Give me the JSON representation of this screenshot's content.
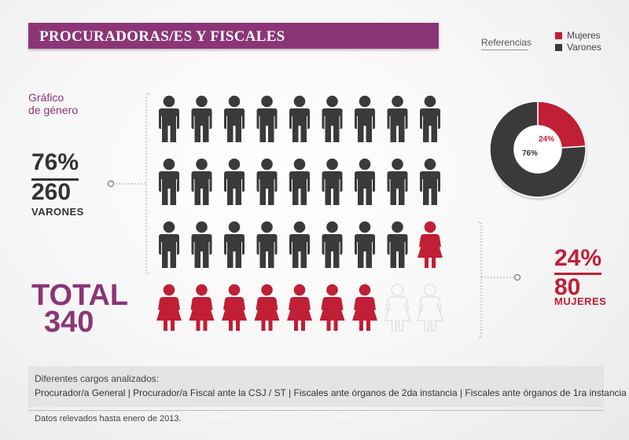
{
  "header": {
    "title": "PROCURADORAS/ES Y FISCALES"
  },
  "legend": {
    "title": "Referencias",
    "items": [
      {
        "label": "Mujeres",
        "color": "#c01f35"
      },
      {
        "label": "Varones",
        "color": "#3a3a3a"
      }
    ]
  },
  "chart_label": {
    "line1": "Gráfico",
    "line2": "de género"
  },
  "male": {
    "percent": "76%",
    "count": "260",
    "label": "VARONES",
    "color": "#3a3a3a"
  },
  "female": {
    "percent": "24%",
    "count": "80",
    "label": "MUJERES",
    "color": "#c01f35"
  },
  "total": {
    "label": "TOTAL",
    "value": "340"
  },
  "chart_data": [
    {
      "type": "pictogram",
      "rows": 4,
      "columns": 9,
      "icons": {
        "male": 26,
        "female": 8,
        "empty": 2
      },
      "values": {
        "Varones": 260,
        "Mujeres": 80
      },
      "total": 340
    },
    {
      "type": "pie",
      "donut": true,
      "categories": [
        "Mujeres",
        "Varones"
      ],
      "values": [
        24,
        76
      ],
      "labels": [
        "24%",
        "76%"
      ],
      "colors": [
        "#c01f35",
        "#3a3a3a"
      ]
    }
  ],
  "footer": {
    "heading": "Diferentes cargos analizados:",
    "text": "Procurador/a General | Procurador/a Fiscal ante la CSJ / ST | Fiscales ante órganos de 2da instancia | Fiscales ante órganos de 1ra instancia",
    "note": "Datos relevados hasta enero de 2013."
  },
  "colors": {
    "accent": "#8b3577",
    "female": "#c01f35",
    "male": "#3a3a3a"
  }
}
